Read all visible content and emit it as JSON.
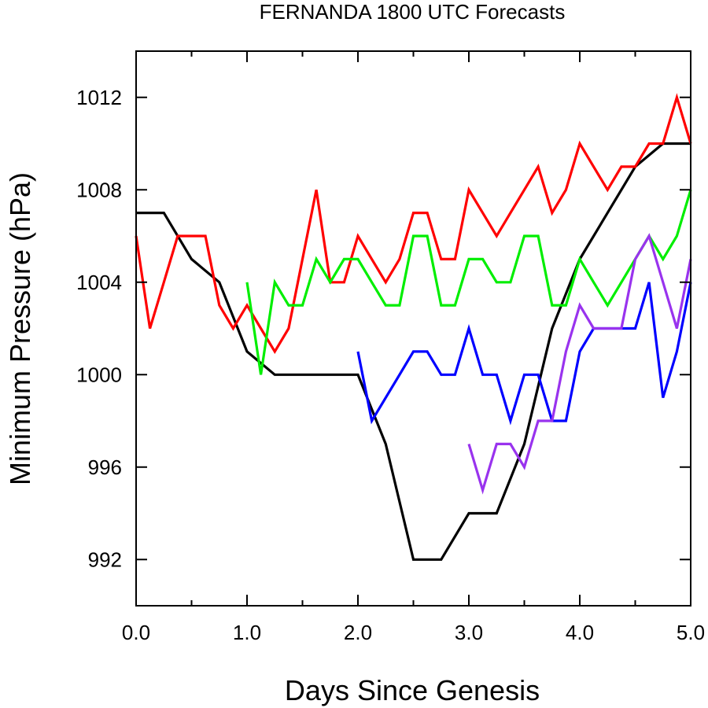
{
  "chart_data": {
    "type": "line",
    "title": "FERNANDA 1800 UTC Forecasts",
    "xlabel": "Days Since Genesis",
    "ylabel": "Minimum Pressure (hPa)",
    "xlim": [
      0,
      5
    ],
    "ylim": [
      990,
      1014
    ],
    "x_ticks": [
      "0.0",
      "1.0",
      "2.0",
      "3.0",
      "4.0",
      "5.0"
    ],
    "y_ticks": [
      "992",
      "996",
      "1000",
      "1004",
      "1008",
      "1012"
    ],
    "grid": false,
    "series": [
      {
        "color": "#000000",
        "x": [
          0,
          0.25,
          0.5,
          0.75,
          1.0,
          1.25,
          1.5,
          1.75,
          2.0,
          2.25,
          2.5,
          2.75,
          3.0,
          3.25,
          3.5,
          3.75,
          4.0,
          4.25,
          4.5,
          4.75,
          5.0
        ],
        "y": [
          1007,
          1007,
          1005,
          1004,
          1001,
          1000,
          1000,
          1000,
          1000,
          997,
          992,
          992,
          994,
          994,
          997,
          1002,
          1005,
          1007,
          1009,
          1010,
          1010
        ]
      },
      {
        "color": "#ff0000",
        "x": [
          0,
          0.125,
          0.25,
          0.375,
          0.5,
          0.625,
          0.75,
          0.875,
          1.0,
          1.125,
          1.25,
          1.375,
          1.5,
          1.625,
          1.75,
          1.875,
          2.0,
          2.125,
          2.25,
          2.375,
          2.5,
          2.625,
          2.75,
          2.875,
          3.0,
          3.125,
          3.25,
          3.375,
          3.5,
          3.625,
          3.75,
          3.875,
          4.0,
          4.125,
          4.25,
          4.375,
          4.5,
          4.625,
          4.75,
          4.875,
          5.0
        ],
        "y": [
          1006,
          1002,
          1004,
          1006,
          1006,
          1006,
          1003,
          1002,
          1003,
          1002,
          1001,
          1002,
          1005,
          1008,
          1004,
          1004,
          1006,
          1005,
          1004,
          1005,
          1007,
          1007,
          1005,
          1005,
          1008,
          1007,
          1006,
          1007,
          1008,
          1009,
          1007,
          1008,
          1010,
          1009,
          1008,
          1009,
          1009,
          1010,
          1010,
          1012,
          1010
        ]
      },
      {
        "color": "#00ee00",
        "x": [
          1.0,
          1.125,
          1.25,
          1.375,
          1.5,
          1.625,
          1.75,
          1.875,
          2.0,
          2.125,
          2.25,
          2.375,
          2.5,
          2.625,
          2.75,
          2.875,
          3.0,
          3.125,
          3.25,
          3.375,
          3.5,
          3.625,
          3.75,
          3.875,
          4.0,
          4.125,
          4.25,
          4.375,
          4.5,
          4.625,
          4.75,
          4.875,
          5.0
        ],
        "y": [
          1004,
          1000,
          1004,
          1003,
          1003,
          1005,
          1004,
          1005,
          1005,
          1004,
          1003,
          1003,
          1006,
          1006,
          1003,
          1003,
          1005,
          1005,
          1004,
          1004,
          1006,
          1006,
          1003,
          1003,
          1005,
          1004,
          1003,
          1004,
          1005,
          1006,
          1005,
          1006,
          1008
        ]
      },
      {
        "color": "#0000ff",
        "x": [
          2.0,
          2.125,
          2.25,
          2.375,
          2.5,
          2.625,
          2.75,
          2.875,
          3.0,
          3.125,
          3.25,
          3.375,
          3.5,
          3.625,
          3.75,
          3.875,
          4.0,
          4.125,
          4.25,
          4.375,
          4.5,
          4.625,
          4.75,
          4.875,
          5.0
        ],
        "y": [
          1001,
          998,
          999,
          1000,
          1001,
          1001,
          1000,
          1000,
          1002,
          1000,
          1000,
          998,
          1000,
          1000,
          998,
          998,
          1001,
          1002,
          1002,
          1002,
          1002,
          1004,
          999,
          1001,
          1004
        ]
      },
      {
        "color": "#9933ee",
        "x": [
          3.0,
          3.125,
          3.25,
          3.375,
          3.5,
          3.625,
          3.75,
          3.875,
          4.0,
          4.125,
          4.25,
          4.375,
          4.5,
          4.625,
          4.75,
          4.875,
          5.0
        ],
        "y": [
          997,
          995,
          997,
          997,
          996,
          998,
          998,
          1001,
          1003,
          1002,
          1002,
          1002,
          1005,
          1006,
          1004,
          1002,
          1005
        ]
      }
    ]
  }
}
